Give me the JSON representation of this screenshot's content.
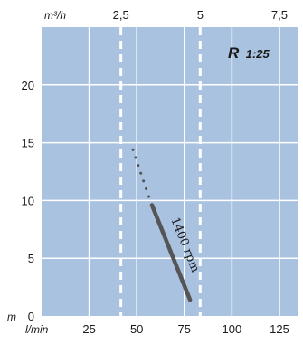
{
  "chart_data": {
    "type": "line",
    "title": "",
    "annotation": {
      "text": "R",
      "ratio": "1:25"
    },
    "x_axis_bottom": {
      "unit": "l/min",
      "ticks": [
        "25",
        "50",
        "75",
        "100",
        "125"
      ],
      "tick_values": [
        25,
        50,
        75,
        100,
        125
      ],
      "range": [
        0,
        135
      ]
    },
    "x_axis_top": {
      "unit": "m³/h",
      "ticks": [
        "2,5",
        "5",
        "7,5"
      ],
      "tick_values": [
        2.5,
        5,
        7.5
      ],
      "dashed_reference_lines_at": [
        2.5,
        5
      ]
    },
    "y_axis": {
      "unit": "m",
      "ticks": [
        "0",
        "5",
        "10",
        "15",
        "20"
      ],
      "tick_values": [
        0,
        5,
        10,
        15,
        20
      ],
      "range": [
        0,
        25
      ]
    },
    "grid": true,
    "series": [
      {
        "name": "1400 rpm",
        "style": "solid",
        "color": "#555555",
        "points": [
          [
            58,
            9.6
          ],
          [
            78,
            1.4
          ]
        ]
      },
      {
        "name": "",
        "style": "dotted",
        "color": "#555555",
        "points": [
          [
            48,
            14.4
          ],
          [
            57,
            10.0
          ]
        ]
      }
    ],
    "colors": {
      "plot_background": "#a9c2e0",
      "grid": "#ffffff",
      "curve": "#555555"
    }
  }
}
